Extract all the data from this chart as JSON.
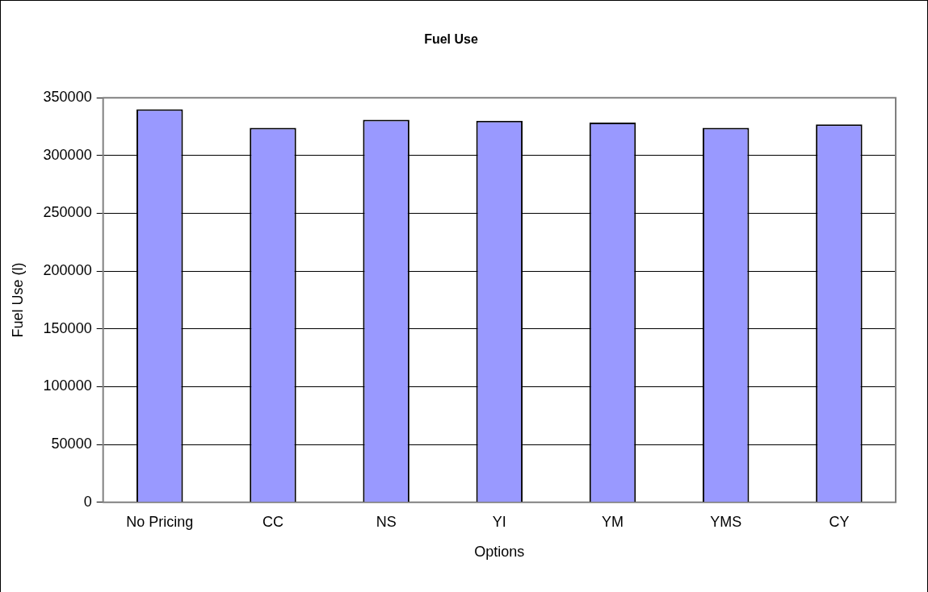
{
  "chart_data": {
    "type": "bar",
    "title": "Fuel Use",
    "xlabel": "Options",
    "ylabel": "Fuel Use (l)",
    "categories": [
      "No Pricing",
      "CC",
      "NS",
      "YI",
      "YM",
      "YMS",
      "CY"
    ],
    "values": [
      340000,
      324000,
      331000,
      330000,
      328500,
      324000,
      327000
    ],
    "color": "#9999ff",
    "ylim": [
      0,
      350000
    ],
    "yticks": [
      0,
      50000,
      100000,
      150000,
      200000,
      250000,
      300000,
      350000
    ],
    "grid": "y",
    "legend": false
  }
}
